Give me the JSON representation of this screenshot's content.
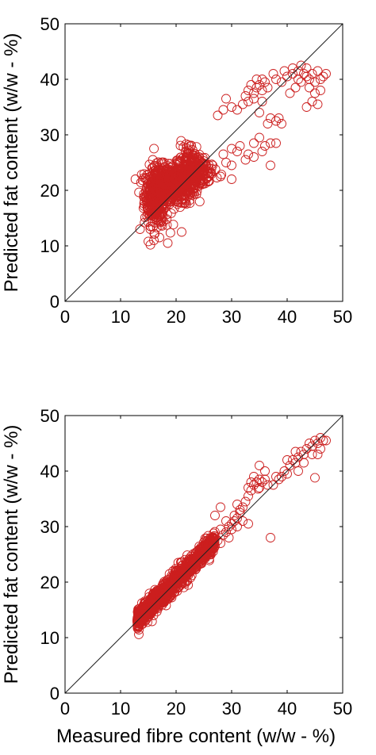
{
  "chart_data": [
    {
      "type": "scatter",
      "title": "",
      "xlabel": "",
      "ylabel": "Predicted fat content (w/w - %)",
      "xlim": [
        0,
        50
      ],
      "ylim": [
        0,
        50
      ],
      "xticks": [
        "0",
        "10",
        "20",
        "30",
        "40",
        "50"
      ],
      "yticks": [
        "0",
        "10",
        "20",
        "30",
        "40",
        "50"
      ],
      "marker_color": "#cc1f1f",
      "marker": "open-circle",
      "reference_line": "y = x",
      "grid": false,
      "legend": "none",
      "clusters": [
        {
          "cx": 16.5,
          "cy": 19.0,
          "sx": 1.1,
          "sy": 2.6,
          "n": 380
        },
        {
          "cx": 19.5,
          "cy": 21.0,
          "sx": 2.0,
          "sy": 1.8,
          "n": 420
        },
        {
          "cx": 23.0,
          "cy": 23.0,
          "sx": 1.3,
          "sy": 1.4,
          "n": 190
        },
        {
          "cx": 22.5,
          "cy": 26.0,
          "sx": 1.0,
          "sy": 1.3,
          "n": 60
        },
        {
          "cx": 26.0,
          "cy": 23.5,
          "sx": 1.2,
          "sy": 0.8,
          "n": 30
        }
      ],
      "points": [
        [
          15.0,
          10.8
        ],
        [
          16.0,
          11.0
        ],
        [
          17.0,
          11.5
        ],
        [
          18.5,
          10.5
        ],
        [
          21.0,
          12.5
        ],
        [
          13.5,
          13.0
        ],
        [
          27.5,
          33.5
        ],
        [
          28.5,
          34.5
        ],
        [
          29.0,
          36.5
        ],
        [
          30.0,
          35.0
        ],
        [
          31.0,
          34.5
        ],
        [
          32.0,
          35.5
        ],
        [
          32.5,
          37.0
        ],
        [
          33.0,
          38.0
        ],
        [
          33.5,
          39.0
        ],
        [
          34.0,
          37.5
        ],
        [
          34.5,
          38.5
        ],
        [
          34.5,
          40.0
        ],
        [
          35.0,
          39.0
        ],
        [
          35.5,
          38.0
        ],
        [
          35.5,
          40.0
        ],
        [
          36.0,
          39.5
        ],
        [
          36.5,
          38.5
        ],
        [
          33.0,
          36.0
        ],
        [
          34.0,
          36.5
        ],
        [
          35.0,
          34.0
        ],
        [
          35.5,
          36.0
        ],
        [
          36.5,
          32.0
        ],
        [
          37.0,
          33.0
        ],
        [
          38.0,
          32.5
        ],
        [
          38.5,
          33.0
        ],
        [
          39.0,
          32.0
        ],
        [
          37.0,
          28.5
        ],
        [
          36.0,
          28.0
        ],
        [
          38.0,
          28.5
        ],
        [
          37.0,
          24.5
        ],
        [
          34.0,
          28.5
        ],
        [
          35.0,
          29.5
        ],
        [
          33.0,
          26.5
        ],
        [
          31.0,
          27.0
        ],
        [
          30.0,
          24.5
        ],
        [
          29.0,
          25.0
        ],
        [
          28.5,
          26.5
        ],
        [
          30.0,
          27.5
        ],
        [
          31.5,
          28.0
        ],
        [
          32.5,
          25.5
        ],
        [
          34.0,
          26.0
        ],
        [
          35.5,
          27.0
        ],
        [
          28.0,
          22.5
        ],
        [
          30.0,
          22.0
        ],
        [
          39.0,
          39.5
        ],
        [
          40.0,
          40.5
        ],
        [
          41.0,
          41.0
        ],
        [
          42.0,
          41.5
        ],
        [
          42.5,
          42.5
        ],
        [
          43.0,
          41.0
        ],
        [
          43.5,
          40.5
        ],
        [
          44.0,
          40.0
        ],
        [
          44.5,
          41.0
        ],
        [
          45.0,
          39.5
        ],
        [
          45.5,
          41.5
        ],
        [
          46.0,
          40.0
        ],
        [
          46.5,
          40.5
        ],
        [
          47.0,
          41.0
        ],
        [
          44.5,
          36.0
        ],
        [
          45.5,
          35.5
        ],
        [
          43.5,
          35.0
        ],
        [
          40.5,
          37.5
        ],
        [
          41.5,
          38.5
        ],
        [
          42.5,
          39.5
        ],
        [
          44.0,
          38.5
        ],
        [
          38.0,
          40.0
        ],
        [
          37.5,
          41.0
        ],
        [
          39.5,
          41.5
        ],
        [
          41.0,
          42.0
        ],
        [
          42.0,
          40.0
        ],
        [
          45.0,
          37.5
        ],
        [
          46.0,
          38.0
        ],
        [
          43.5,
          42.0
        ]
      ]
    },
    {
      "type": "scatter",
      "title": "",
      "xlabel": "Measured fibre content (w/w - %)",
      "ylabel": "Predicted fat content (w/w - %)",
      "xlim": [
        0,
        50
      ],
      "ylim": [
        0,
        50
      ],
      "xticks": [
        "0",
        "10",
        "20",
        "30",
        "40",
        "50"
      ],
      "yticks": [
        "0",
        "10",
        "20",
        "30",
        "40",
        "50"
      ],
      "marker_color": "#cc1f1f",
      "marker": "open-circle",
      "reference_line": "y = x",
      "grid": false,
      "legend": "none",
      "band": {
        "x_from": 13.0,
        "x_to": 27.0,
        "slope": 1.0,
        "intercept": 0.3,
        "spread": 0.9,
        "n": 1100
      },
      "points": [
        [
          27.0,
          26.5
        ],
        [
          27.5,
          27.5
        ],
        [
          28.0,
          27.0
        ],
        [
          28.5,
          28.5
        ],
        [
          29.0,
          29.0
        ],
        [
          29.5,
          30.0
        ],
        [
          30.0,
          30.5
        ],
        [
          30.5,
          31.0
        ],
        [
          31.0,
          31.5
        ],
        [
          31.5,
          32.5
        ],
        [
          32.0,
          33.5
        ],
        [
          32.5,
          34.5
        ],
        [
          33.0,
          35.5
        ],
        [
          33.5,
          36.5
        ],
        [
          34.0,
          37.5
        ],
        [
          34.5,
          38.0
        ],
        [
          35.0,
          38.5
        ],
        [
          35.5,
          38.0
        ],
        [
          36.0,
          38.5
        ],
        [
          36.5,
          37.5
        ],
        [
          35.0,
          37.0
        ],
        [
          34.0,
          39.0
        ],
        [
          36.0,
          40.0
        ],
        [
          33.5,
          38.0
        ],
        [
          34.8,
          36.8
        ],
        [
          30.5,
          32.0
        ],
        [
          31.5,
          33.0
        ],
        [
          27.0,
          32.0
        ],
        [
          28.0,
          33.5
        ],
        [
          29.0,
          31.0
        ],
        [
          30.0,
          29.5
        ],
        [
          31.0,
          30.0
        ],
        [
          32.0,
          31.0
        ],
        [
          33.0,
          30.5
        ],
        [
          29.5,
          28.0
        ],
        [
          28.0,
          29.5
        ],
        [
          37.0,
          28.0
        ],
        [
          37.5,
          37.5
        ],
        [
          38.0,
          39.0
        ],
        [
          38.5,
          38.5
        ],
        [
          39.0,
          39.0
        ],
        [
          39.5,
          40.0
        ],
        [
          40.0,
          39.5
        ],
        [
          40.5,
          41.0
        ],
        [
          41.0,
          42.0
        ],
        [
          41.5,
          41.5
        ],
        [
          42.0,
          42.5
        ],
        [
          42.5,
          43.5
        ],
        [
          43.0,
          43.0
        ],
        [
          43.5,
          44.0
        ],
        [
          44.0,
          45.0
        ],
        [
          44.5,
          44.5
        ],
        [
          45.0,
          45.5
        ],
        [
          45.5,
          45.0
        ],
        [
          46.0,
          46.0
        ],
        [
          46.5,
          45.5
        ],
        [
          47.0,
          45.5
        ],
        [
          45.5,
          43.0
        ],
        [
          44.5,
          43.0
        ],
        [
          45.0,
          38.8
        ],
        [
          43.0,
          41.5
        ],
        [
          41.5,
          43.5
        ],
        [
          40.0,
          42.0
        ],
        [
          42.0,
          40.0
        ],
        [
          46.0,
          44.0
        ],
        [
          35.0,
          41.0
        ],
        [
          31.0,
          34.0
        ],
        [
          33.0,
          37.0
        ]
      ]
    }
  ]
}
